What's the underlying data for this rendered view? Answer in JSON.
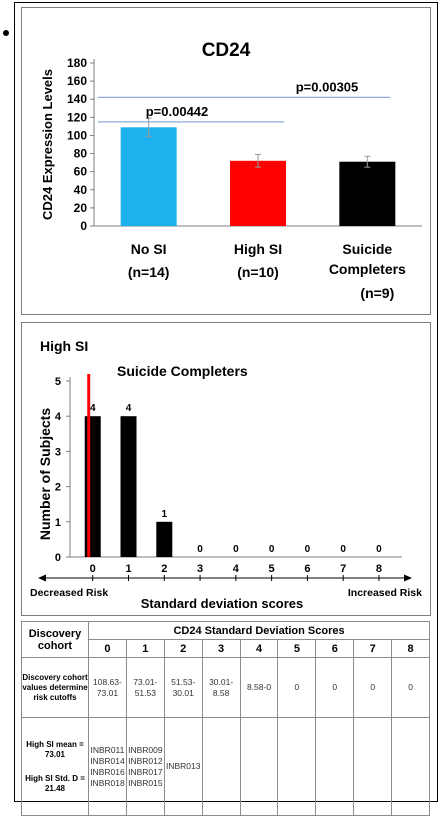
{
  "chart_data": [
    {
      "type": "bar",
      "title": "CD24",
      "ylabel": "CD24 Expression Levels",
      "ylim": [
        0,
        180
      ],
      "yticks": [
        0,
        20,
        40,
        60,
        80,
        100,
        120,
        140,
        160,
        180
      ],
      "categories": [
        "No SI",
        "High SI",
        "Suicide Completers"
      ],
      "category_notes": [
        "(n=14)",
        "(n=10)",
        "(n=9)"
      ],
      "values": [
        109,
        72,
        71
      ],
      "errors": [
        10,
        7,
        6
      ],
      "colors": [
        "#1fb0ee",
        "#ff0000",
        "#000000"
      ],
      "annotations": [
        {
          "text": "p=0.00442",
          "from": 0,
          "to": 1,
          "y": 115
        },
        {
          "text": "p=0.00305",
          "from": 0,
          "to": 2,
          "y": 142
        }
      ]
    },
    {
      "type": "bar",
      "title": "High SI",
      "subtitle": "Suicide Completers",
      "ylabel": "Number of Subjects",
      "xlabel": "Standard deviation scores",
      "ylim": [
        0,
        5
      ],
      "yticks": [
        0,
        1,
        2,
        3,
        4,
        5
      ],
      "categories": [
        "0",
        "1",
        "2",
        "3",
        "4",
        "5",
        "6",
        "7",
        "8"
      ],
      "values": [
        4,
        4,
        1,
        0,
        0,
        0,
        0,
        0,
        0
      ],
      "data_labels": [
        "4",
        "4",
        "1",
        "0",
        "0",
        "0",
        "0",
        "0",
        "0"
      ],
      "bar_color": "#000000",
      "marker_line": {
        "color": "#ff0000",
        "x": 0,
        "top": 5.2
      },
      "arrow_left_label": "Decreased Risk",
      "arrow_right_label": "Increased Risk"
    }
  ],
  "table": {
    "corner_label": "Discovery cohort",
    "group_header": "CD24 Standard Deviation Scores",
    "columns": [
      "0",
      "1",
      "2",
      "3",
      "4",
      "5",
      "6",
      "7",
      "8"
    ],
    "row1_label": "Discovery cohort values determine risk cutoffs",
    "row1_values": [
      "108.63-73.01",
      "73.01-51.53",
      "51.53-30.01",
      "30.01-8.58",
      "8.58-0",
      "0",
      "0",
      "0",
      "0"
    ],
    "row2_label_a": "High SI mean = 73.01",
    "row2_label_b": "High SI Std. D = 21.48",
    "row2_values": [
      "INBR011 INBR014 INBR016 INBR018",
      "INBR009 INBR012 INBR017 INBR015",
      "INBR013",
      "",
      "",
      "",
      "",
      "",
      ""
    ]
  }
}
